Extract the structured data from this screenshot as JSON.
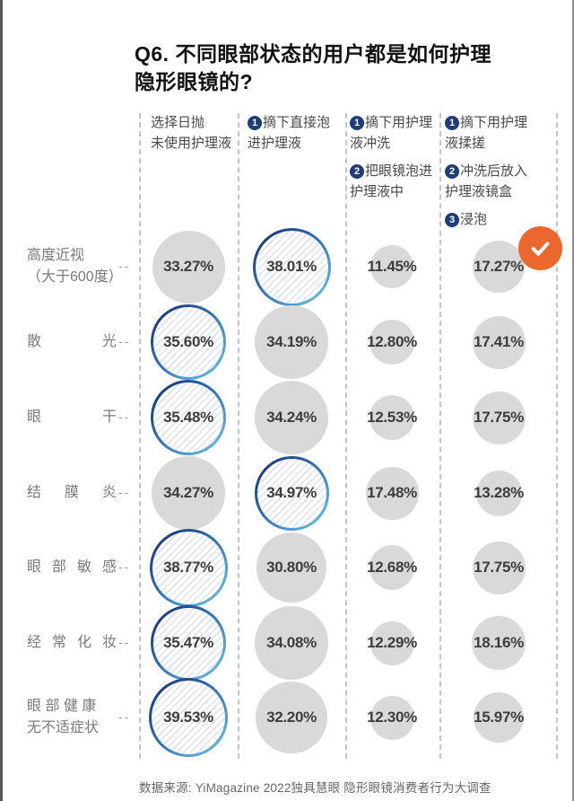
{
  "title": "Q6. 不同眼部状态的用户都是如何护理\n隐形眼镜的?",
  "footer": "数据来源: YiMagazine 2022独具慧眼 隐形眼镜消费者行为大调查",
  "check_badge": {
    "icon": "check",
    "meaning": "highlight-marker"
  },
  "colors": {
    "orange": "#EB672E",
    "navy": "#1F3C78",
    "ring_dark": "#13286B",
    "ring_mid": "#2E6DB4",
    "ring_light": "#70C8E8",
    "bubble_gray": "#D9D9D9",
    "hatch": "#DDE2E8",
    "divider": "#BCC5D2"
  },
  "chart_data": {
    "type": "bubble",
    "variant": "matrix",
    "title": "Q6. 不同眼部状态的用户都是如何护理隐形眼镜的?",
    "unit": "%",
    "size_encoding": "circle diameter proportional to sqrt(value)",
    "legend_position": "none",
    "grid": "dashed column dividers",
    "columns": [
      {
        "label": "选择日抛 未使用护理液",
        "items": [
          {
            "badge": null,
            "text": "选择日抛\n未使用护理液"
          }
        ]
      },
      {
        "label": "摘下直接泡进护理液",
        "items": [
          {
            "badge": "1",
            "text": "摘下直接泡\n进护理液"
          }
        ]
      },
      {
        "label": "摘下用护理液冲洗 / 把眼镜泡进护理液中",
        "items": [
          {
            "badge": "1",
            "text": "摘下用护理\n液冲洗"
          },
          {
            "badge": "2",
            "text": "把眼镜泡进\n护理液中"
          }
        ]
      },
      {
        "label": "摘下用护理液揉搓 / 冲洗后放入护理液镜盒 / 浸泡",
        "items": [
          {
            "badge": "1",
            "text": "摘下用护理\n液揉搓"
          },
          {
            "badge": "2",
            "text": "冲洗后放入\n护理液镜盒"
          },
          {
            "badge": "3",
            "text": "浸泡"
          }
        ]
      }
    ],
    "rows": [
      {
        "label": "高度近视\n（大于600度）",
        "values": [
          33.27,
          38.01,
          11.45,
          17.27
        ],
        "highlight": 1
      },
      {
        "label": "散光",
        "values": [
          35.6,
          34.19,
          12.8,
          17.41
        ],
        "highlight": 0
      },
      {
        "label": "眼干",
        "values": [
          35.48,
          34.24,
          12.53,
          17.75
        ],
        "highlight": 0
      },
      {
        "label": "结膜炎",
        "values": [
          34.27,
          34.97,
          17.48,
          13.28
        ],
        "highlight": 1
      },
      {
        "label": "眼部敏感",
        "values": [
          38.77,
          30.8,
          12.68,
          17.75
        ],
        "highlight": 0
      },
      {
        "label": "经 常 化 妆",
        "values": [
          35.47,
          34.08,
          12.29,
          18.16
        ],
        "highlight": 0
      },
      {
        "label": "眼 部 健 康\n无不适症状",
        "values": [
          39.53,
          32.2,
          12.3,
          15.97
        ],
        "highlight": 0
      }
    ],
    "source": "数据来源: YiMagazine 2022独具慧眼 隐形眼镜消费者行为大调查"
  }
}
